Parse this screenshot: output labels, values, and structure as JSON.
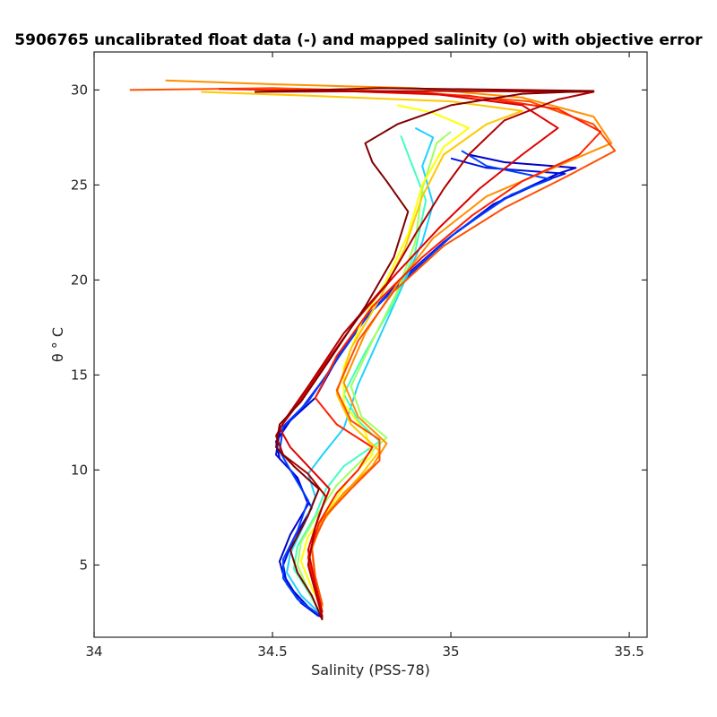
{
  "chart_data": {
    "type": "line",
    "title": "5906765 uncalibrated float data (-) and mapped salinity (o) with objective error",
    "xlabel": "Salinity (PSS-78)",
    "ylabel": "θ ° C",
    "xlim": [
      34.0,
      35.55
    ],
    "ylim": [
      1.2,
      32.0
    ],
    "x_ticks": [
      34,
      34.5,
      35,
      35.5
    ],
    "x_tick_labels": [
      "34",
      "34.5",
      "35",
      "35.5"
    ],
    "y_ticks": [
      5,
      10,
      15,
      20,
      25,
      30
    ],
    "y_tick_labels": [
      "5",
      "10",
      "15",
      "20",
      "25",
      "30"
    ],
    "grid": false,
    "legend": "none",
    "color_scale": "jet (blue = early profiles, dark red = late profiles)",
    "series": [
      {
        "color": "#0000c8",
        "points": [
          [
            34.64,
            2.2
          ],
          [
            34.6,
            2.8
          ],
          [
            34.56,
            3.6
          ],
          [
            34.53,
            4.5
          ],
          [
            34.52,
            5.2
          ],
          [
            34.55,
            6.6
          ],
          [
            34.6,
            8.2
          ],
          [
            34.57,
            9.6
          ],
          [
            34.52,
            10.6
          ],
          [
            34.51,
            11.5
          ],
          [
            34.55,
            12.6
          ],
          [
            34.62,
            13.8
          ],
          [
            34.7,
            16.5
          ],
          [
            34.78,
            18.4
          ],
          [
            34.88,
            20.2
          ],
          [
            35.0,
            22.3
          ],
          [
            35.15,
            24.3
          ],
          [
            35.3,
            25.6
          ],
          [
            35.35,
            25.9
          ],
          [
            35.15,
            26.2
          ],
          [
            35.05,
            26.6
          ]
        ]
      },
      {
        "color": "#0010e0",
        "points": [
          [
            34.63,
            2.3
          ],
          [
            34.58,
            3.0
          ],
          [
            34.54,
            4.0
          ],
          [
            34.53,
            5.0
          ],
          [
            34.56,
            6.4
          ],
          [
            34.61,
            8.0
          ],
          [
            34.56,
            9.8
          ],
          [
            34.51,
            10.8
          ],
          [
            34.52,
            12.0
          ],
          [
            34.58,
            13.2
          ],
          [
            34.66,
            15.2
          ],
          [
            34.75,
            17.8
          ],
          [
            34.86,
            20.0
          ],
          [
            34.98,
            22.0
          ],
          [
            35.12,
            24.0
          ],
          [
            35.26,
            25.2
          ],
          [
            35.32,
            25.6
          ],
          [
            35.1,
            25.9
          ],
          [
            35.0,
            26.4
          ]
        ]
      },
      {
        "color": "#0040ff",
        "points": [
          [
            34.63,
            2.4
          ],
          [
            34.57,
            3.2
          ],
          [
            34.53,
            4.3
          ],
          [
            34.53,
            5.3
          ],
          [
            34.57,
            6.8
          ],
          [
            34.6,
            8.4
          ],
          [
            34.55,
            10.0
          ],
          [
            34.52,
            11.0
          ],
          [
            34.53,
            12.3
          ],
          [
            34.6,
            13.6
          ],
          [
            34.68,
            15.8
          ],
          [
            34.77,
            18.2
          ],
          [
            34.9,
            20.6
          ],
          [
            35.02,
            22.6
          ],
          [
            35.17,
            24.5
          ],
          [
            35.28,
            25.3
          ],
          [
            35.1,
            26.0
          ],
          [
            35.03,
            26.8
          ]
        ]
      },
      {
        "color": "#20d0ff",
        "points": [
          [
            34.63,
            2.5
          ],
          [
            34.58,
            3.4
          ],
          [
            34.54,
            4.6
          ],
          [
            34.55,
            5.6
          ],
          [
            34.59,
            7.2
          ],
          [
            34.62,
            8.6
          ],
          [
            34.6,
            9.8
          ],
          [
            34.64,
            10.8
          ],
          [
            34.7,
            12.2
          ],
          [
            34.74,
            14.5
          ],
          [
            34.8,
            17.0
          ],
          [
            34.86,
            19.5
          ],
          [
            34.92,
            22.0
          ],
          [
            34.95,
            24.0
          ],
          [
            34.92,
            26.0
          ],
          [
            34.95,
            27.5
          ],
          [
            34.9,
            28.0
          ]
        ]
      },
      {
        "color": "#40ffc0",
        "points": [
          [
            34.63,
            2.6
          ],
          [
            34.6,
            3.6
          ],
          [
            34.56,
            4.8
          ],
          [
            34.57,
            6.0
          ],
          [
            34.62,
            7.6
          ],
          [
            34.65,
            9.0
          ],
          [
            34.7,
            10.2
          ],
          [
            34.8,
            11.5
          ],
          [
            34.74,
            12.6
          ],
          [
            34.7,
            14.0
          ],
          [
            34.76,
            16.2
          ],
          [
            34.84,
            18.8
          ],
          [
            34.9,
            21.5
          ],
          [
            34.93,
            24.2
          ],
          [
            34.88,
            26.6
          ],
          [
            34.86,
            27.6
          ]
        ]
      },
      {
        "color": "#a0ff60",
        "points": [
          [
            34.63,
            2.6
          ],
          [
            34.6,
            3.7
          ],
          [
            34.57,
            5.0
          ],
          [
            34.58,
            6.2
          ],
          [
            34.63,
            7.8
          ],
          [
            34.68,
            9.2
          ],
          [
            34.75,
            10.5
          ],
          [
            34.82,
            11.7
          ],
          [
            34.75,
            12.8
          ],
          [
            34.72,
            14.4
          ],
          [
            34.78,
            16.8
          ],
          [
            34.85,
            19.4
          ],
          [
            34.9,
            22.0
          ],
          [
            34.92,
            24.8
          ],
          [
            34.96,
            27.2
          ],
          [
            35.0,
            27.8
          ]
        ]
      },
      {
        "color": "#ffff00",
        "points": [
          [
            34.64,
            2.7
          ],
          [
            34.61,
            3.8
          ],
          [
            34.58,
            5.2
          ],
          [
            34.6,
            6.5
          ],
          [
            34.66,
            8.0
          ],
          [
            34.71,
            9.4
          ],
          [
            34.78,
            10.8
          ],
          [
            34.76,
            12.0
          ],
          [
            34.7,
            13.5
          ],
          [
            34.7,
            15.4
          ],
          [
            34.75,
            17.8
          ],
          [
            34.82,
            20.0
          ],
          [
            34.88,
            22.4
          ],
          [
            34.92,
            25.0
          ],
          [
            34.98,
            27.0
          ],
          [
            35.05,
            28.0
          ],
          [
            34.95,
            28.8
          ],
          [
            34.85,
            29.2
          ]
        ]
      },
      {
        "color": "#ffc800",
        "points": [
          [
            34.64,
            2.8
          ],
          [
            34.62,
            4.0
          ],
          [
            34.6,
            5.5
          ],
          [
            34.63,
            7.0
          ],
          [
            34.69,
            8.5
          ],
          [
            34.75,
            9.8
          ],
          [
            34.8,
            11.0
          ],
          [
            34.72,
            12.4
          ],
          [
            34.68,
            14.0
          ],
          [
            34.72,
            16.4
          ],
          [
            34.8,
            19.0
          ],
          [
            34.87,
            21.6
          ],
          [
            34.92,
            24.4
          ],
          [
            34.98,
            26.6
          ],
          [
            35.1,
            28.2
          ],
          [
            35.2,
            28.9
          ],
          [
            35.0,
            29.4
          ],
          [
            34.6,
            29.7
          ],
          [
            34.3,
            29.9
          ]
        ]
      },
      {
        "color": "#ff9000",
        "points": [
          [
            34.64,
            2.8
          ],
          [
            34.62,
            4.2
          ],
          [
            34.61,
            5.8
          ],
          [
            34.64,
            7.4
          ],
          [
            34.7,
            8.8
          ],
          [
            34.78,
            10.2
          ],
          [
            34.82,
            11.4
          ],
          [
            34.74,
            12.8
          ],
          [
            34.7,
            14.6
          ],
          [
            34.76,
            17.2
          ],
          [
            34.85,
            19.8
          ],
          [
            34.95,
            22.2
          ],
          [
            35.1,
            24.4
          ],
          [
            35.3,
            26.0
          ],
          [
            35.45,
            27.2
          ],
          [
            35.4,
            28.6
          ],
          [
            35.2,
            29.6
          ],
          [
            34.9,
            30.1
          ],
          [
            34.5,
            30.3
          ],
          [
            34.2,
            30.5
          ]
        ]
      },
      {
        "color": "#ff5000",
        "points": [
          [
            34.64,
            2.9
          ],
          [
            34.62,
            4.4
          ],
          [
            34.61,
            6.0
          ],
          [
            34.65,
            7.6
          ],
          [
            34.72,
            9.0
          ],
          [
            34.8,
            10.5
          ],
          [
            34.8,
            11.6
          ],
          [
            34.72,
            12.6
          ],
          [
            34.68,
            14.2
          ],
          [
            34.74,
            16.8
          ],
          [
            34.84,
            19.4
          ],
          [
            34.98,
            21.8
          ],
          [
            35.15,
            23.8
          ],
          [
            35.32,
            25.4
          ],
          [
            35.46,
            26.8
          ],
          [
            35.4,
            28.2
          ],
          [
            35.22,
            29.4
          ],
          [
            34.9,
            29.9
          ],
          [
            34.5,
            30.1
          ],
          [
            34.1,
            30.0
          ]
        ]
      },
      {
        "color": "#ff2000",
        "points": [
          [
            34.64,
            2.3
          ],
          [
            34.62,
            3.8
          ],
          [
            34.6,
            5.4
          ],
          [
            34.63,
            7.2
          ],
          [
            34.68,
            8.8
          ],
          [
            34.74,
            10.0
          ],
          [
            34.78,
            11.2
          ],
          [
            34.68,
            12.4
          ],
          [
            34.62,
            13.8
          ],
          [
            34.68,
            16.0
          ],
          [
            34.78,
            18.6
          ],
          [
            34.92,
            21.2
          ],
          [
            35.06,
            23.4
          ],
          [
            35.2,
            25.2
          ],
          [
            35.36,
            26.6
          ],
          [
            35.42,
            27.8
          ],
          [
            35.3,
            29.0
          ],
          [
            35.05,
            29.7
          ],
          [
            34.7,
            29.95
          ],
          [
            34.35,
            30.05
          ]
        ]
      },
      {
        "color": "#e00000",
        "points": [
          [
            34.64,
            2.5
          ],
          [
            34.62,
            4.0
          ],
          [
            34.6,
            5.8
          ],
          [
            34.63,
            7.6
          ],
          [
            34.66,
            9.0
          ],
          [
            34.6,
            10.2
          ],
          [
            34.55,
            11.2
          ],
          [
            34.52,
            12.2
          ],
          [
            34.56,
            13.2
          ],
          [
            34.64,
            15.4
          ],
          [
            34.74,
            18.0
          ],
          [
            34.85,
            20.4
          ],
          [
            34.97,
            22.8
          ],
          [
            35.08,
            24.8
          ],
          [
            35.2,
            26.6
          ],
          [
            35.3,
            28.0
          ],
          [
            35.2,
            29.2
          ],
          [
            34.95,
            29.8
          ],
          [
            34.6,
            30.0
          ]
        ]
      },
      {
        "color": "#b00000",
        "points": [
          [
            34.64,
            2.2
          ],
          [
            34.62,
            3.6
          ],
          [
            34.6,
            5.0
          ],
          [
            34.62,
            7.0
          ],
          [
            34.65,
            8.6
          ],
          [
            34.6,
            9.8
          ],
          [
            34.53,
            10.8
          ],
          [
            34.51,
            11.8
          ],
          [
            34.54,
            12.8
          ],
          [
            34.6,
            14.4
          ],
          [
            34.7,
            17.2
          ],
          [
            34.82,
            19.8
          ],
          [
            34.9,
            22.4
          ],
          [
            34.98,
            24.8
          ],
          [
            35.05,
            26.6
          ],
          [
            35.15,
            28.4
          ],
          [
            35.3,
            29.5
          ],
          [
            35.4,
            29.9
          ],
          [
            34.95,
            29.95
          ],
          [
            34.45,
            29.9
          ]
        ]
      },
      {
        "color": "#800000",
        "points": [
          [
            34.64,
            2.1
          ],
          [
            34.61,
            3.4
          ],
          [
            34.57,
            4.6
          ],
          [
            34.55,
            5.8
          ],
          [
            34.6,
            7.6
          ],
          [
            34.63,
            9.0
          ],
          [
            34.56,
            10.2
          ],
          [
            34.51,
            11.2
          ],
          [
            34.52,
            12.4
          ],
          [
            34.58,
            13.6
          ],
          [
            34.66,
            15.8
          ],
          [
            34.76,
            18.6
          ],
          [
            34.84,
            21.2
          ],
          [
            34.88,
            23.6
          ],
          [
            34.82,
            25.2
          ],
          [
            34.78,
            26.2
          ],
          [
            34.76,
            27.2
          ],
          [
            34.85,
            28.2
          ],
          [
            35.0,
            29.2
          ],
          [
            35.2,
            29.8
          ],
          [
            35.4,
            29.95
          ],
          [
            34.8,
            30.1
          ],
          [
            34.45,
            29.9
          ]
        ]
      }
    ]
  }
}
